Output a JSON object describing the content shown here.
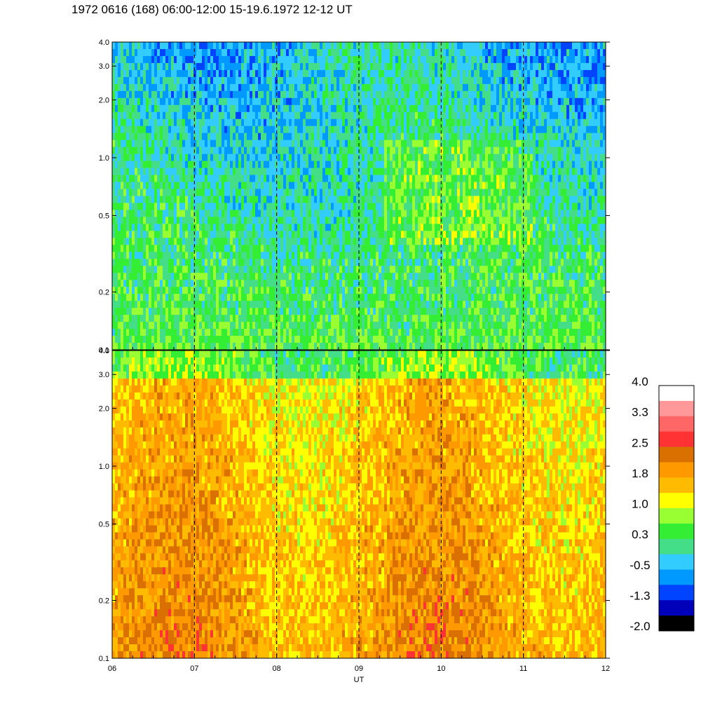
{
  "title": "1972 0616 (168) 06:00-12:00 15-19.6.1972  12-12 UT",
  "chart_data": [
    {
      "type": "heatmap",
      "panel": "upper",
      "x_ticks": [
        "06",
        "07",
        "08",
        "09",
        "10",
        "11",
        "12"
      ],
      "xlim": [
        6,
        12
      ],
      "y_scale": "log",
      "ylim": [
        0.1,
        4.0
      ],
      "y_ticks": [
        {
          "value": 0.1,
          "label": "0.1"
        },
        {
          "value": 0.2,
          "label": "0.2"
        },
        {
          "value": 0.5,
          "label": "0.5"
        },
        {
          "value": 1.0,
          "label": "1.0"
        },
        {
          "value": 2.0,
          "label": "2.0"
        },
        {
          "value": 3.0,
          "label": "3.0"
        },
        {
          "value": 4.0,
          "label": "4.0"
        }
      ],
      "dashed_day_lines": [
        7,
        8,
        9,
        10,
        11
      ],
      "value_range": [
        -0.5,
        1.0
      ]
    },
    {
      "type": "heatmap",
      "panel": "lower",
      "x_ticks": [
        "06",
        "07",
        "08",
        "09",
        "10",
        "11",
        "12"
      ],
      "xlim": [
        6,
        12
      ],
      "xlabel": "UT",
      "y_scale": "log",
      "ylim": [
        0.1,
        4.0
      ],
      "y_ticks": [
        {
          "value": 0.1,
          "label": "0.1"
        },
        {
          "value": 0.2,
          "label": "0.2"
        },
        {
          "value": 0.5,
          "label": "0.5"
        },
        {
          "value": 1.0,
          "label": "1.0"
        },
        {
          "value": 2.0,
          "label": "2.0"
        },
        {
          "value": 3.0,
          "label": "3.0"
        },
        {
          "value": 4.0,
          "label": "4.0"
        }
      ],
      "dashed_day_lines": [
        7,
        8,
        9,
        10,
        11
      ],
      "value_range": [
        0.3,
        2.5
      ]
    }
  ],
  "colorbar": {
    "min": -2.0,
    "max": 4.0,
    "labels": [
      "4.0",
      "3.3",
      "2.5",
      "1.8",
      "1.0",
      "0.3",
      "-0.5",
      "-1.3",
      "-2.0"
    ],
    "colors_top_to_bottom": [
      "#ffffff",
      "#ff9999",
      "#ff6666",
      "#ff3333",
      "#d97000",
      "#ff9900",
      "#ffbb00",
      "#ffff00",
      "#99ff33",
      "#33ee33",
      "#44dd88",
      "#33ccff",
      "#0099ff",
      "#0044ff",
      "#0000bb",
      "#000000"
    ]
  }
}
